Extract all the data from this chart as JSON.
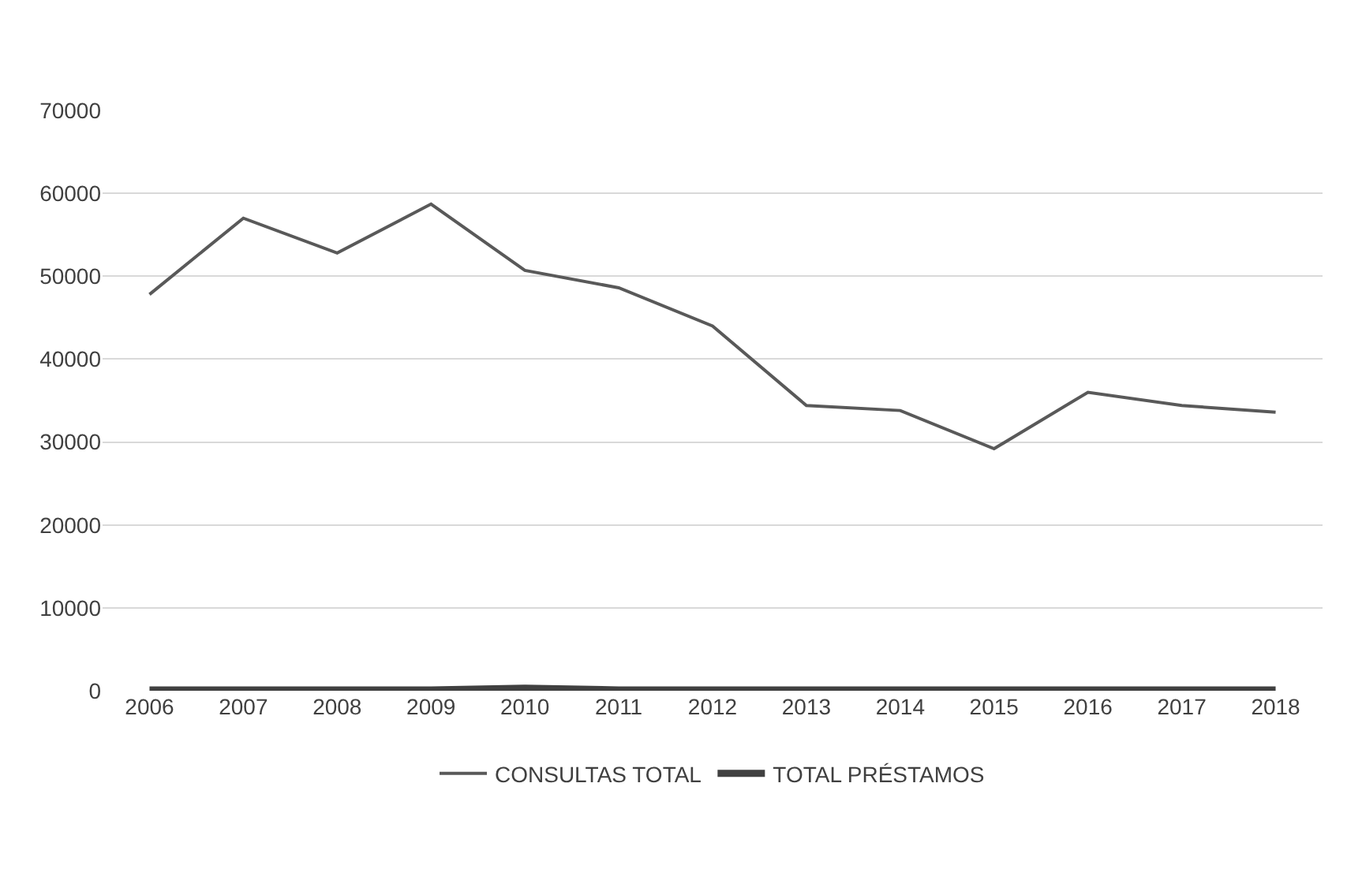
{
  "chart_data": {
    "type": "line",
    "categories": [
      "2006",
      "2007",
      "2008",
      "2009",
      "2010",
      "2011",
      "2012",
      "2013",
      "2014",
      "2015",
      "2016",
      "2017",
      "2018"
    ],
    "series": [
      {
        "name": "CONSULTAS TOTAL",
        "color": "#595959",
        "values": [
          47800,
          57000,
          52800,
          58700,
          50700,
          48600,
          44000,
          34400,
          33800,
          29200,
          36000,
          34400,
          33600
        ]
      },
      {
        "name": "TOTAL PRÉSTAMOS",
        "color": "#404040",
        "values": [
          100,
          100,
          100,
          100,
          300,
          100,
          100,
          100,
          100,
          100,
          100,
          100,
          100
        ]
      }
    ],
    "ylim": [
      0,
      70000
    ],
    "yticks": [
      0,
      10000,
      20000,
      30000,
      40000,
      50000,
      60000,
      70000
    ],
    "grid": "y",
    "legend": "bottom",
    "marker": "none",
    "line_style": "solid"
  }
}
